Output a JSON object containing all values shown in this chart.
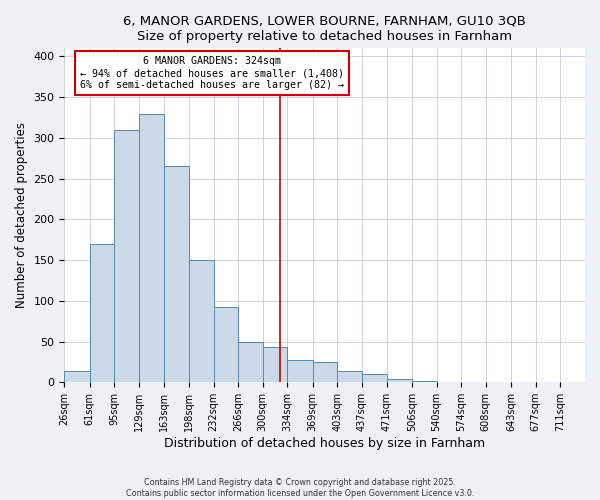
{
  "title1": "6, MANOR GARDENS, LOWER BOURNE, FARNHAM, GU10 3QB",
  "title2": "Size of property relative to detached houses in Farnham",
  "xlabel": "Distribution of detached houses by size in Farnham",
  "ylabel": "Number of detached properties",
  "bar_values": [
    14,
    170,
    310,
    330,
    265,
    150,
    93,
    50,
    44,
    28,
    25,
    14,
    10,
    4,
    2,
    1,
    0,
    1,
    0,
    0,
    1
  ],
  "bin_labels": [
    "26sqm",
    "61sqm",
    "95sqm",
    "129sqm",
    "163sqm",
    "198sqm",
    "232sqm",
    "266sqm",
    "300sqm",
    "334sqm",
    "369sqm",
    "403sqm",
    "437sqm",
    "471sqm",
    "506sqm",
    "540sqm",
    "574sqm",
    "608sqm",
    "643sqm",
    "677sqm",
    "711sqm"
  ],
  "bin_edges": [
    26,
    61,
    95,
    129,
    163,
    198,
    232,
    266,
    300,
    334,
    369,
    403,
    437,
    471,
    506,
    540,
    574,
    608,
    643,
    677,
    711,
    745
  ],
  "bar_color": "#ccd9e8",
  "bar_edge_color": "#5588aa",
  "vline_x": 324,
  "vline_color": "#cc0000",
  "annotation_title": "6 MANOR GARDENS: 324sqm",
  "annotation_line1": "← 94% of detached houses are smaller (1,408)",
  "annotation_line2": "6% of semi-detached houses are larger (82) →",
  "annotation_box_color": "#cc0000",
  "ylim": [
    0,
    410
  ],
  "yticks": [
    0,
    50,
    100,
    150,
    200,
    250,
    300,
    350,
    400
  ],
  "footer1": "Contains HM Land Registry data © Crown copyright and database right 2025.",
  "footer2": "Contains public sector information licensed under the Open Government Licence v3.0.",
  "bg_color": "#eef2f7",
  "plot_bg_color": "#ffffff",
  "grid_color": "#c5cdd8"
}
